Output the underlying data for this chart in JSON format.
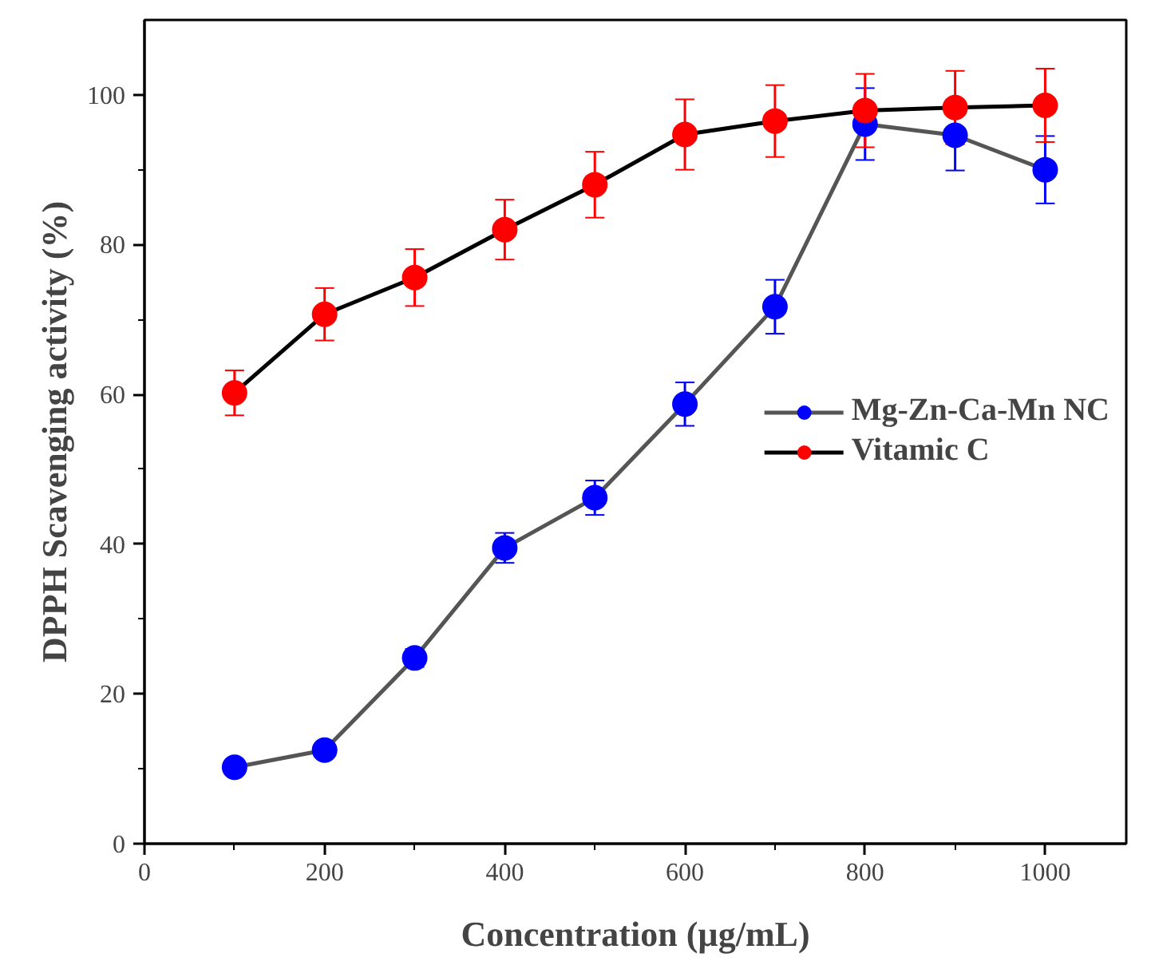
{
  "chart_data": {
    "type": "line",
    "xlabel": "Concentration (µg/mL)",
    "ylabel": "DPPH Scavenging activity (%)",
    "x": [
      100,
      200,
      300,
      400,
      500,
      600,
      700,
      800,
      900,
      1000
    ],
    "series": [
      {
        "name": "Mg-Zn-Ca-Mn NC",
        "color": "#0000ff",
        "values": [
          10.2,
          12.5,
          24.8,
          39.5,
          46.2,
          58.7,
          71.7,
          96.1,
          94.6,
          90.0
        ],
        "errors": [
          0.5,
          0.6,
          1.2,
          2.0,
          2.3,
          2.9,
          3.6,
          4.8,
          4.7,
          4.5
        ]
      },
      {
        "name": "Vitamic C",
        "color": "#ff0000",
        "values": [
          60.2,
          70.7,
          75.6,
          82.0,
          88.0,
          94.7,
          96.5,
          97.9,
          98.3,
          98.6
        ],
        "errors": [
          3.0,
          3.5,
          3.8,
          4.0,
          4.4,
          4.7,
          4.8,
          4.9,
          4.9,
          4.9
        ]
      }
    ],
    "xlim": [
      0,
      1090
    ],
    "ylim": [
      0,
      110
    ],
    "xticks": [
      0,
      200,
      400,
      600,
      800,
      1000
    ],
    "yticks": [
      0,
      20,
      40,
      60,
      80,
      100
    ],
    "grid": false,
    "legend": "right",
    "marker": "circle",
    "line_style": "solid"
  }
}
